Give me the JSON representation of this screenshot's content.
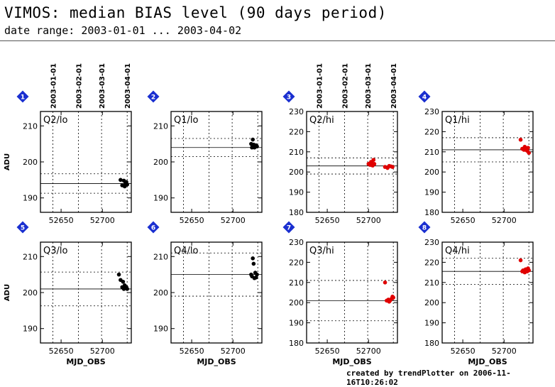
{
  "header": {
    "title": "VIMOS: median BIAS level (90 days period)",
    "subtitle": "date range: 2003-01-01 ... 2003-04-02"
  },
  "footer": "created by trendPlotter on 2006-11-16T10:26:02",
  "colors": {
    "black_points": "#000000",
    "red_points": "#e00000",
    "badge": "#1a2fd0"
  },
  "date_labels": [
    "2003-01-01",
    "2003-02-01",
    "2003-03-01",
    "2003-04-01"
  ],
  "date_ticks_mjd": [
    52640,
    52671,
    52699,
    52730
  ],
  "chart_data": [
    {
      "type": "scatter",
      "badge": "1",
      "title": "Q2/lo",
      "color": "black",
      "ylabel": "ADU",
      "xlabel": "",
      "xlim": [
        52625,
        52735
      ],
      "ylim": [
        186,
        214
      ],
      "yticks": [
        190,
        200,
        210
      ],
      "xticks": [
        52650,
        52700
      ],
      "mean": 194.0,
      "bands": [
        191.3,
        196.7
      ],
      "points": [
        [
          52722,
          195.0
        ],
        [
          52724,
          193.5
        ],
        [
          52726,
          194.8
        ],
        [
          52727,
          193.2
        ],
        [
          52728,
          194.0
        ],
        [
          52729,
          194.4
        ],
        [
          52730,
          193.7
        ]
      ]
    },
    {
      "type": "scatter",
      "badge": "2",
      "title": "Q1/lo",
      "color": "black",
      "ylabel": "",
      "xlabel": "",
      "xlim": [
        52625,
        52735
      ],
      "ylim": [
        186,
        214
      ],
      "yticks": [
        190,
        200,
        210
      ],
      "xticks": [
        52650,
        52700
      ],
      "mean": 204.0,
      "bands": [
        201.5,
        206.5
      ],
      "points": [
        [
          52722,
          205.0
        ],
        [
          52723,
          204.0
        ],
        [
          52724,
          206.2
        ],
        [
          52725,
          204.8
        ],
        [
          52726,
          204.0
        ],
        [
          52728,
          204.6
        ],
        [
          52729,
          204.3
        ]
      ]
    },
    {
      "type": "scatter",
      "badge": "3",
      "title": "Q2/hi",
      "color": "red",
      "ylabel": "",
      "xlabel": "",
      "date_axis": true,
      "xlim": [
        52625,
        52735
      ],
      "ylim": [
        180,
        230
      ],
      "yticks": [
        180,
        190,
        200,
        210,
        220,
        230
      ],
      "xticks": [
        52650,
        52700
      ],
      "mean": 203.0,
      "bands": [
        199.0,
        207.0
      ],
      "points": [
        [
          52700,
          204.0
        ],
        [
          52702,
          203.5
        ],
        [
          52703,
          205.0
        ],
        [
          52704,
          204.5
        ],
        [
          52705,
          203.2
        ],
        [
          52706,
          206.0
        ],
        [
          52707,
          204.0
        ],
        [
          52720,
          202.5
        ],
        [
          52723,
          202.0
        ],
        [
          52725,
          203.0
        ],
        [
          52727,
          202.8
        ],
        [
          52729,
          202.5
        ]
      ]
    },
    {
      "type": "scatter",
      "badge": "4",
      "title": "Q1/hi",
      "color": "red",
      "ylabel": "",
      "xlabel": "",
      "xlim": [
        52625,
        52735
      ],
      "ylim": [
        180,
        230
      ],
      "yticks": [
        180,
        190,
        200,
        210,
        220,
        230
      ],
      "xticks": [
        52650,
        52700
      ],
      "mean": 211.0,
      "bands": [
        205.0,
        217.0
      ],
      "points": [
        [
          52720,
          216.0
        ],
        [
          52722,
          211.5
        ],
        [
          52724,
          211.0
        ],
        [
          52725,
          212.5
        ],
        [
          52726,
          211.0
        ],
        [
          52728,
          210.5
        ],
        [
          52729,
          212.0
        ],
        [
          52730,
          209.5
        ]
      ]
    },
    {
      "type": "scatter",
      "badge": "5",
      "title": "Q3/lo",
      "color": "black",
      "ylabel": "ADU",
      "xlabel": "MJD_OBS",
      "xlim": [
        52625,
        52735
      ],
      "ylim": [
        186,
        214
      ],
      "yticks": [
        190,
        200,
        210
      ],
      "xticks": [
        52650,
        52700
      ],
      "mean": 201.0,
      "bands": [
        196.3,
        205.7
      ],
      "points": [
        [
          52720,
          205.0
        ],
        [
          52722,
          203.5
        ],
        [
          52724,
          201.5
        ],
        [
          52725,
          203.0
        ],
        [
          52726,
          201.0
        ],
        [
          52727,
          202.0
        ],
        [
          52728,
          201.3
        ],
        [
          52729,
          201.5
        ],
        [
          52730,
          201.0
        ]
      ]
    },
    {
      "type": "scatter",
      "badge": "6",
      "title": "Q4/lo",
      "color": "black",
      "ylabel": "",
      "xlabel": "MJD_OBS",
      "xlim": [
        52625,
        52735
      ],
      "ylim": [
        186,
        214
      ],
      "yticks": [
        190,
        200,
        210
      ],
      "xticks": [
        52650,
        52700
      ],
      "mean": 205.0,
      "bands": [
        199.0,
        211.0
      ],
      "points": [
        [
          52722,
          205.0
        ],
        [
          52723,
          204.5
        ],
        [
          52724,
          209.5
        ],
        [
          52725,
          208.0
        ],
        [
          52726,
          204.0
        ],
        [
          52727,
          205.5
        ],
        [
          52728,
          204.2
        ],
        [
          52729,
          205.0
        ]
      ]
    },
    {
      "type": "scatter",
      "badge": "7",
      "title": "Q3/hi",
      "color": "red",
      "ylabel": "",
      "xlabel": "MJD_OBS",
      "xlim": [
        52625,
        52735
      ],
      "ylim": [
        180,
        230
      ],
      "yticks": [
        180,
        190,
        200,
        210,
        220,
        230
      ],
      "xticks": [
        52650,
        52700
      ],
      "mean": 201.0,
      "bands": [
        191.0,
        211.0
      ],
      "points": [
        [
          52720,
          210.0
        ],
        [
          52722,
          201.0
        ],
        [
          52724,
          201.5
        ],
        [
          52725,
          200.5
        ],
        [
          52726,
          201.0
        ],
        [
          52728,
          202.0
        ],
        [
          52729,
          203.0
        ],
        [
          52730,
          202.5
        ]
      ]
    },
    {
      "type": "scatter",
      "badge": "8",
      "title": "Q4/hi",
      "color": "red",
      "ylabel": "",
      "xlabel": "MJD_OBS",
      "xlim": [
        52625,
        52735
      ],
      "ylim": [
        180,
        230
      ],
      "yticks": [
        180,
        190,
        200,
        210,
        220,
        230
      ],
      "xticks": [
        52650,
        52700
      ],
      "mean": 215.5,
      "bands": [
        209.0,
        222.0
      ],
      "points": [
        [
          52720,
          221.0
        ],
        [
          52722,
          215.5
        ],
        [
          52723,
          216.0
        ],
        [
          52725,
          215.0
        ],
        [
          52726,
          216.5
        ],
        [
          52728,
          215.5
        ],
        [
          52729,
          217.0
        ],
        [
          52730,
          216.0
        ]
      ]
    }
  ]
}
